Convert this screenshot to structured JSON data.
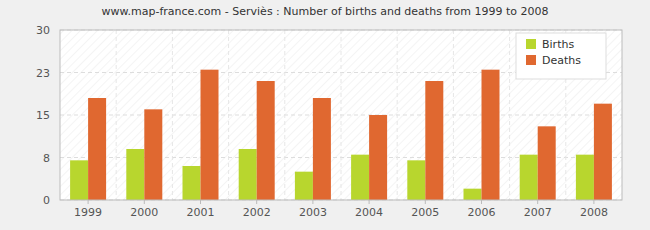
{
  "chart_data": {
    "type": "bar",
    "title": "www.map-france.com - Serviès : Number of births and deaths from 1999 to 2008",
    "categories": [
      "1999",
      "2000",
      "2001",
      "2002",
      "2003",
      "2004",
      "2005",
      "2006",
      "2007",
      "2008"
    ],
    "series": [
      {
        "name": "Births",
        "color": "#b8d62e",
        "values": [
          7,
          9,
          6,
          9,
          5,
          8,
          7,
          2,
          8,
          8
        ]
      },
      {
        "name": "Deaths",
        "color": "#e06830",
        "values": [
          18,
          16,
          23,
          21,
          18,
          15,
          21,
          23,
          13,
          17
        ]
      }
    ],
    "ylim": [
      0,
      30
    ],
    "yticks": [
      0,
      {
        "value": 7.5,
        "label": "8"
      },
      15,
      {
        "value": 22.5,
        "label": "23"
      },
      30
    ],
    "grid": true,
    "legend": "top-right"
  }
}
